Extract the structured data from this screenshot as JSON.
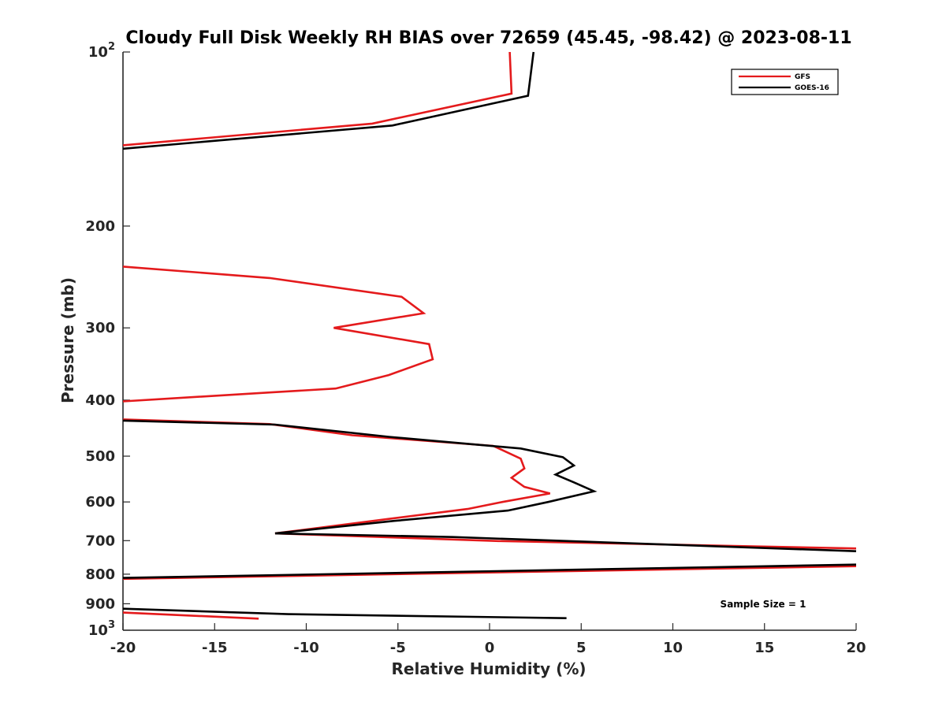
{
  "chart_data": {
    "type": "line",
    "title": "Cloudy Full Disk Weekly RH BIAS over 72659 (45.45, -98.42) @ 2023-08-11",
    "xlabel": "Relative Humidity (%)",
    "ylabel": "Pressure (mb)",
    "xlim": [
      -20,
      20
    ],
    "ylim": [
      1000,
      100
    ],
    "y_scale": "log",
    "y_reversed": true,
    "grid": false,
    "legend_position": "top-right",
    "x_ticks": [
      "-20",
      "-15",
      "-10",
      "-5",
      "0",
      "5",
      "10",
      "15",
      "20"
    ],
    "x_tick_values": [
      -20,
      -15,
      -10,
      -5,
      0,
      5,
      10,
      15,
      20
    ],
    "y_ticks": [
      {
        "value": 100,
        "base": "10",
        "exp": "2"
      },
      {
        "value": 200,
        "label": "200"
      },
      {
        "value": 300,
        "label": "300"
      },
      {
        "value": 400,
        "label": "400"
      },
      {
        "value": 500,
        "label": "500"
      },
      {
        "value": 600,
        "label": "600"
      },
      {
        "value": 700,
        "label": "700"
      },
      {
        "value": 800,
        "label": "800"
      },
      {
        "value": 900,
        "label": "900"
      },
      {
        "value": 1000,
        "base": "10",
        "exp": "3"
      }
    ],
    "annotation": "Sample Size = 1",
    "series": [
      {
        "name": "GFS",
        "color": "#e41a1c",
        "segments": [
          [
            [
              1.1,
              100
            ],
            [
              1.2,
              118
            ],
            [
              -6.4,
              133
            ],
            [
              -20,
              145
            ]
          ],
          [
            [
              -20,
              235
            ],
            [
              -12,
              246
            ],
            [
              -4.8,
              265
            ],
            [
              -3.6,
              283
            ],
            [
              -8.5,
              300
            ],
            [
              -3.3,
              320
            ],
            [
              -3.1,
              340
            ],
            [
              -5.5,
              362
            ],
            [
              -8.4,
              382
            ],
            [
              -12,
              388
            ],
            [
              -20,
              402
            ]
          ],
          [
            [
              -20,
              432
            ],
            [
              -12,
              440
            ],
            [
              -7.5,
              460
            ],
            [
              0.2,
              480
            ],
            [
              1.7,
              505
            ],
            [
              1.9,
              525
            ],
            [
              1.2,
              545
            ],
            [
              1.9,
              565
            ],
            [
              3.3,
              580
            ],
            [
              0.7,
              600
            ],
            [
              -1.2,
              617
            ],
            [
              -5.5,
              642
            ],
            [
              -11.7,
              680
            ],
            [
              0.5,
              701
            ],
            [
              20,
              722
            ]
          ],
          [
            [
              20,
              775
            ],
            [
              -20,
              815
            ]
          ],
          [
            [
              -20,
              932
            ],
            [
              -12.6,
              955
            ]
          ]
        ]
      },
      {
        "name": "GOES-16",
        "color": "#000000",
        "segments": [
          [
            [
              2.4,
              100
            ],
            [
              2.1,
              119
            ],
            [
              -5.3,
              134
            ],
            [
              -20,
              147
            ]
          ],
          [
            [
              -20,
              434
            ],
            [
              -11.7,
              441
            ],
            [
              -5.5,
              463
            ],
            [
              1.7,
              485
            ],
            [
              4.0,
              502
            ],
            [
              4.6,
              519
            ],
            [
              3.6,
              538
            ],
            [
              4.6,
              555
            ],
            [
              5.7,
              575
            ],
            [
              3.2,
              600
            ],
            [
              1.0,
              621
            ],
            [
              -5.2,
              647
            ],
            [
              -11.7,
              680
            ],
            [
              -2.0,
              690
            ],
            [
              20,
              730
            ]
          ],
          [
            [
              20,
              770
            ],
            [
              -20,
              812
            ]
          ],
          [
            [
              -20,
              918
            ],
            [
              -11.0,
              938
            ],
            [
              4.2,
              953
            ]
          ]
        ]
      }
    ]
  }
}
